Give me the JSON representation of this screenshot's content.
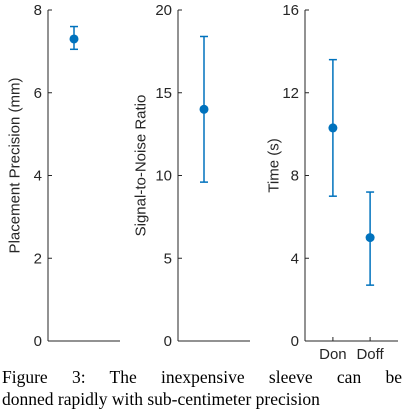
{
  "chart_data": [
    {
      "type": "errorbar",
      "ylabel": "Placement Precision (mm)",
      "ylim": [
        0,
        8
      ],
      "yticks": [
        0,
        2,
        4,
        6,
        8
      ],
      "categories": [
        ""
      ],
      "points": [
        {
          "x": "",
          "y": 7.3,
          "lower": 7.05,
          "upper": 7.6
        }
      ]
    },
    {
      "type": "errorbar",
      "ylabel": "Signal-to-Noise Ratio",
      "ylim": [
        0,
        20
      ],
      "yticks": [
        0,
        5,
        10,
        15,
        20
      ],
      "categories": [
        ""
      ],
      "points": [
        {
          "x": "",
          "y": 14.0,
          "lower": 9.6,
          "upper": 18.4
        }
      ]
    },
    {
      "type": "errorbar",
      "ylabel": "Time (s)",
      "ylim": [
        0,
        16
      ],
      "yticks": [
        0,
        4,
        8,
        12,
        16
      ],
      "categories": [
        "Don",
        "Doff"
      ],
      "points": [
        {
          "x": "Don",
          "y": 10.3,
          "lower": 7.0,
          "upper": 13.6
        },
        {
          "x": "Doff",
          "y": 5.0,
          "lower": 2.7,
          "upper": 7.2
        }
      ]
    }
  ],
  "colors": {
    "marker": "#0072bd",
    "axis": "#262626"
  },
  "caption": {
    "line1": "Figure 3: The inexpensive sleeve can be",
    "line2": "donned rapidly with sub-centimeter precision"
  }
}
